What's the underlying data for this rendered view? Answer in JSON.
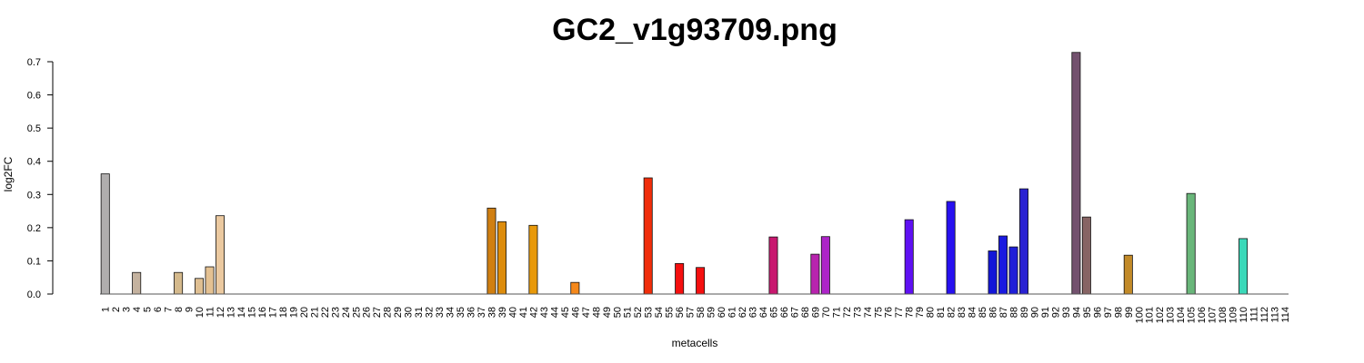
{
  "chart_data": {
    "type": "bar",
    "title": "GC2_v1g93709.png",
    "xlabel": "metacells",
    "ylabel": "log2FC",
    "ylim": [
      0,
      0.7
    ],
    "yticks": [
      "0.0",
      "0.1",
      "0.2",
      "0.3",
      "0.4",
      "0.5",
      "0.6",
      "0.7"
    ],
    "grid": false,
    "categories": [
      "1",
      "2",
      "3",
      "4",
      "5",
      "6",
      "7",
      "8",
      "9",
      "10",
      "11",
      "12",
      "13",
      "14",
      "15",
      "16",
      "17",
      "18",
      "19",
      "20",
      "21",
      "22",
      "23",
      "24",
      "25",
      "26",
      "27",
      "28",
      "29",
      "30",
      "31",
      "32",
      "33",
      "34",
      "35",
      "36",
      "37",
      "38",
      "39",
      "40",
      "41",
      "42",
      "43",
      "44",
      "45",
      "46",
      "47",
      "48",
      "49",
      "50",
      "51",
      "52",
      "53",
      "54",
      "55",
      "56",
      "57",
      "58",
      "59",
      "60",
      "61",
      "62",
      "63",
      "64",
      "65",
      "66",
      "67",
      "68",
      "69",
      "70",
      "71",
      "72",
      "73",
      "74",
      "75",
      "76",
      "77",
      "78",
      "79",
      "80",
      "81",
      "82",
      "83",
      "84",
      "85",
      "86",
      "87",
      "88",
      "89",
      "90",
      "91",
      "92",
      "93",
      "94",
      "95",
      "96",
      "97",
      "98",
      "99",
      "100",
      "101",
      "102",
      "103",
      "104",
      "105",
      "106",
      "107",
      "108",
      "109",
      "110",
      "111",
      "112",
      "113",
      "114"
    ],
    "values": [
      0.362,
      0,
      0,
      0.065,
      0,
      0,
      0,
      0.065,
      0,
      0.047,
      0.082,
      0.236,
      0,
      0,
      0,
      0,
      0,
      0,
      0,
      0,
      0,
      0,
      0,
      0,
      0,
      0,
      0,
      0,
      0,
      0,
      0,
      0,
      0,
      0,
      0,
      0,
      0,
      0.259,
      0.218,
      0,
      0,
      0.207,
      0,
      0,
      0,
      0.035,
      0,
      0,
      0,
      0,
      0,
      0,
      0.35,
      0,
      0,
      0.092,
      0,
      0.08,
      0,
      0,
      0,
      0,
      0,
      0,
      0.172,
      0,
      0,
      0,
      0.12,
      0.173,
      0,
      0,
      0,
      0,
      0,
      0,
      0,
      0.224,
      0,
      0,
      0,
      0.279,
      0,
      0,
      0,
      0.13,
      0.175,
      0.142,
      0.317,
      0,
      0,
      0,
      0,
      0.728,
      0.232,
      0,
      0,
      0,
      0.117,
      0,
      0,
      0,
      0,
      0,
      0.303,
      0,
      0,
      0,
      0,
      0.167,
      0,
      0,
      0,
      0
    ],
    "colors": [
      "#b0aeae",
      "#bcb0a5",
      "#bcb0a5",
      "#c4b29f",
      "#c6b09a",
      "#c9b195",
      "#cbb391",
      "#d4b98c",
      "#d9bc8c",
      "#dfbf92",
      "#e4c192",
      "#ebc9a0",
      "#e6b37a",
      "#e2a560",
      "#dd9a4d",
      "#d8913d",
      "#d38b31",
      "#cf8728",
      "#cc8220",
      "#ca7f1c",
      "#c97d18",
      "#c87c16",
      "#c87a14",
      "#c87914",
      "#c87813",
      "#c97812",
      "#c97712",
      "#ca7712",
      "#cb7612",
      "#cc7712",
      "#cd7812",
      "#ce7812",
      "#ce7812",
      "#cf7a12",
      "#cf7b12",
      "#cf7c12",
      "#cf7d12",
      "#d07f12",
      "#dd8c0c",
      "#e39309",
      "#e69808",
      "#e8990a",
      "#eb960d",
      "#ee8f10",
      "#f18814",
      "#f5881b",
      "#f4721a",
      "#f2601a",
      "#f04d18",
      "#ee3c16",
      "#ec2e14",
      "#ea2211",
      "#f02d0a",
      "#f21d0c",
      "#f3140e",
      "#f5100f",
      "#f40f10",
      "#f51010",
      "#ee1a1a",
      "#e61f2a",
      "#de223a",
      "#d5244a",
      "#cc255a",
      "#c52066",
      "#c8186f",
      "#c31a7f",
      "#bd1d8f",
      "#b8209f",
      "#b823ae",
      "#ad24c8",
      "#a120d0",
      "#951cd8",
      "#8918e0",
      "#7d15e8",
      "#7112ee",
      "#6511f2",
      "#5a10f5",
      "#5f10f3",
      "#4a10f4",
      "#3e10f4",
      "#3210f4",
      "#2710f0",
      "#2412ec",
      "#2213e6",
      "#1f13e0",
      "#1316d8",
      "#1a1ae0",
      "#1f1fd8",
      "#2a22d2",
      "#3a2fb8",
      "#4a3aa0",
      "#5a4590",
      "#6a4f80",
      "#73516e",
      "#876464",
      "#957060",
      "#a57c48",
      "#b6862e",
      "#c28a28",
      "#a98c3e",
      "#998f4c",
      "#899256",
      "#7e9760",
      "#7aaa61",
      "#69b67a",
      "#5abf8a",
      "#4ac89a",
      "#3ad0aa",
      "#33d4b4",
      "#3ad9b9",
      "#48dcc0",
      "#57dec6",
      "#66e0cc",
      "#75e2d2"
    ]
  }
}
